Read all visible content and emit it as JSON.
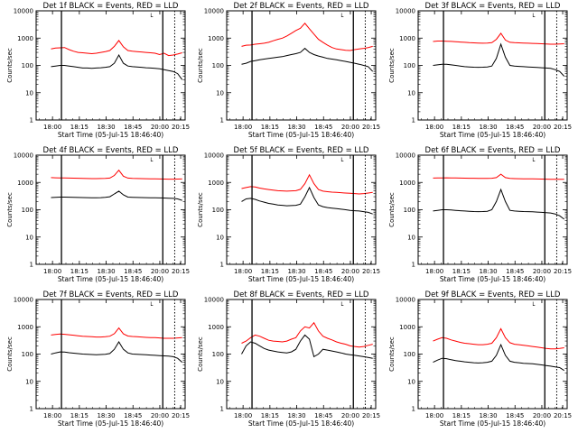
{
  "chart_data": [
    {
      "type": "line",
      "title": "Det 1f BLACK = Events, RED = LLD",
      "ylabel": "Counts/sec",
      "xlabel": "Start Time (05-Jul-15 18:46:40)",
      "yscale": "log",
      "ylim": [
        1,
        10000
      ],
      "yticks": [
        "1",
        "10",
        "100",
        "1000",
        "10000"
      ],
      "xticks": [
        "18:00",
        "18:15",
        "18:30",
        "18:45",
        "20:00",
        "20:15"
      ],
      "legend_mark": "└",
      "series": [
        {
          "name": "RED = LLD",
          "color": "#ff0000",
          "values": [
            400,
            430,
            440,
            450,
            380,
            330,
            300,
            290,
            280,
            270,
            280,
            300,
            320,
            350,
            500,
            820,
            480,
            350,
            330,
            320,
            310,
            300,
            290,
            280,
            250,
            280,
            230,
            240,
            260,
            290
          ]
        },
        {
          "name": "BLACK = Events",
          "color": "#000000",
          "values": [
            90,
            95,
            100,
            100,
            95,
            90,
            85,
            80,
            80,
            78,
            80,
            82,
            85,
            90,
            120,
            240,
            120,
            95,
            90,
            88,
            85,
            82,
            80,
            78,
            75,
            70,
            65,
            60,
            50,
            30
          ]
        }
      ]
    },
    {
      "type": "line",
      "title": "Det 2f BLACK = Events, RED = LLD",
      "ylabel": "Counts/sec",
      "xlabel": "Start Time (05-Jul-15 18:46:40)",
      "yscale": "log",
      "ylim": [
        1,
        10000
      ],
      "yticks": [
        "1",
        "10",
        "100",
        "1000",
        "10000"
      ],
      "xticks": [
        "18:00",
        "18:15",
        "18:30",
        "18:45",
        "20:00",
        "20:15"
      ],
      "legend_mark": "└",
      "series": [
        {
          "name": "RED = LLD",
          "color": "#ff0000",
          "values": [
            500,
            550,
            560,
            600,
            620,
            650,
            700,
            800,
            900,
            1000,
            1200,
            1500,
            1900,
            2300,
            3500,
            2200,
            1400,
            900,
            700,
            550,
            450,
            400,
            380,
            360,
            350,
            380,
            400,
            420,
            450,
            500
          ]
        },
        {
          "name": "BLACK = Events",
          "color": "#000000",
          "values": [
            110,
            120,
            140,
            150,
            160,
            170,
            180,
            190,
            200,
            210,
            230,
            250,
            270,
            300,
            420,
            300,
            250,
            220,
            200,
            180,
            170,
            160,
            150,
            140,
            130,
            120,
            110,
            100,
            90,
            60
          ]
        }
      ]
    },
    {
      "type": "line",
      "title": "Det 3f BLACK = Events, RED = LLD",
      "ylabel": "Counts/sec",
      "xlabel": "Start Time (05-Jul-15 18:46:40)",
      "yscale": "log",
      "ylim": [
        1,
        10000
      ],
      "yticks": [
        "1",
        "10",
        "100",
        "1000",
        "10000"
      ],
      "xticks": [
        "18:00",
        "18:15",
        "18:30",
        "18:45",
        "20:00",
        "20:15"
      ],
      "legend_mark": "└",
      "series": [
        {
          "name": "RED = LLD",
          "color": "#ff0000",
          "values": [
            750,
            780,
            780,
            770,
            760,
            740,
            720,
            700,
            680,
            670,
            660,
            650,
            660,
            680,
            900,
            1500,
            850,
            700,
            680,
            670,
            660,
            650,
            640,
            630,
            620,
            610,
            600,
            600,
            610,
            620
          ]
        },
        {
          "name": "BLACK = Events",
          "color": "#000000",
          "values": [
            100,
            105,
            110,
            110,
            105,
            100,
            95,
            90,
            88,
            86,
            85,
            86,
            88,
            95,
            180,
            600,
            200,
            100,
            95,
            92,
            90,
            88,
            86,
            84,
            82,
            80,
            78,
            70,
            60,
            40
          ]
        }
      ]
    },
    {
      "type": "line",
      "title": "Det 4f BLACK = Events, RED = LLD",
      "ylabel": "Counts/sec",
      "xlabel": "Start Time (05-Jul-15 18:46:40)",
      "yscale": "log",
      "ylim": [
        1,
        10000
      ],
      "yticks": [
        "1",
        "10",
        "100",
        "1000",
        "10000"
      ],
      "xticks": [
        "18:00",
        "18:15",
        "18:30",
        "18:45",
        "20:00",
        "20:15"
      ],
      "legend_mark": "└",
      "series": [
        {
          "name": "RED = LLD",
          "color": "#ff0000",
          "values": [
            1500,
            1480,
            1470,
            1460,
            1450,
            1440,
            1420,
            1400,
            1390,
            1380,
            1380,
            1390,
            1400,
            1450,
            1800,
            2800,
            1700,
            1450,
            1400,
            1390,
            1380,
            1370,
            1360,
            1350,
            1340,
            1330,
            1320,
            1320,
            1330,
            1340
          ]
        },
        {
          "name": "BLACK = Events",
          "color": "#000000",
          "values": [
            280,
            285,
            290,
            290,
            288,
            285,
            282,
            280,
            278,
            276,
            275,
            278,
            285,
            300,
            380,
            480,
            350,
            290,
            285,
            282,
            280,
            278,
            276,
            274,
            272,
            270,
            265,
            260,
            250,
            220
          ]
        }
      ]
    },
    {
      "type": "line",
      "title": "Det 5f BLACK = Events, RED = LLD",
      "ylabel": "Counts/sec",
      "xlabel": "Start Time (05-Jul-15 18:46:40)",
      "yscale": "log",
      "ylim": [
        1,
        10000
      ],
      "yticks": [
        "1",
        "10",
        "100",
        "1000",
        "10000"
      ],
      "xticks": [
        "18:00",
        "18:15",
        "18:30",
        "18:45",
        "20:00",
        "20:15"
      ],
      "legend_mark": "└",
      "series": [
        {
          "name": "RED = LLD",
          "color": "#ff0000",
          "values": [
            600,
            650,
            700,
            680,
            620,
            580,
            550,
            520,
            500,
            490,
            480,
            490,
            500,
            560,
            900,
            1900,
            900,
            550,
            480,
            460,
            440,
            430,
            420,
            410,
            400,
            390,
            380,
            390,
            410,
            430
          ]
        },
        {
          "name": "BLACK = Events",
          "color": "#000000",
          "values": [
            200,
            250,
            260,
            240,
            210,
            190,
            170,
            160,
            150,
            145,
            140,
            142,
            145,
            160,
            300,
            650,
            280,
            150,
            130,
            120,
            115,
            110,
            105,
            100,
            95,
            92,
            90,
            85,
            80,
            70
          ]
        }
      ]
    },
    {
      "type": "line",
      "title": "Det 6f BLACK = Events, RED = LLD",
      "ylabel": "Counts/sec",
      "xlabel": "Start Time (05-Jul-15 18:46:40)",
      "yscale": "log",
      "ylim": [
        1,
        10000
      ],
      "yticks": [
        "1",
        "10",
        "100",
        "1000",
        "10000"
      ],
      "xticks": [
        "18:00",
        "18:15",
        "18:30",
        "18:45",
        "20:00",
        "20:15"
      ],
      "legend_mark": "└",
      "series": [
        {
          "name": "RED = LLD",
          "color": "#ff0000",
          "values": [
            1450,
            1460,
            1470,
            1480,
            1470,
            1460,
            1450,
            1440,
            1430,
            1420,
            1410,
            1400,
            1400,
            1420,
            1500,
            2000,
            1500,
            1400,
            1380,
            1370,
            1360,
            1350,
            1350,
            1340,
            1330,
            1320,
            1310,
            1300,
            1300,
            1300
          ]
        },
        {
          "name": "BLACK = Events",
          "color": "#000000",
          "values": [
            90,
            95,
            100,
            100,
            98,
            95,
            92,
            90,
            88,
            86,
            85,
            86,
            88,
            100,
            200,
            550,
            200,
            95,
            90,
            88,
            86,
            85,
            84,
            82,
            80,
            78,
            76,
            70,
            60,
            45
          ]
        }
      ]
    },
    {
      "type": "line",
      "title": "Det 7f BLACK = Events, RED = LLD",
      "ylabel": "Counts/sec",
      "xlabel": "Start Time (05-Jul-15 18:46:40)",
      "yscale": "log",
      "ylim": [
        1,
        10000
      ],
      "yticks": [
        "1",
        "10",
        "100",
        "1000",
        "10000"
      ],
      "xticks": [
        "18:00",
        "18:15",
        "18:30",
        "18:45",
        "20:00",
        "20:15"
      ],
      "legend_mark": "└",
      "series": [
        {
          "name": "RED = LLD",
          "color": "#ff0000",
          "values": [
            500,
            520,
            540,
            530,
            510,
            490,
            470,
            450,
            440,
            430,
            420,
            420,
            430,
            450,
            560,
            900,
            550,
            460,
            440,
            430,
            420,
            410,
            400,
            400,
            390,
            380,
            380,
            380,
            390,
            400
          ]
        },
        {
          "name": "BLACK = Events",
          "color": "#000000",
          "values": [
            100,
            110,
            120,
            118,
            112,
            108,
            104,
            100,
            98,
            96,
            95,
            96,
            98,
            105,
            150,
            280,
            150,
            110,
            100,
            98,
            96,
            94,
            92,
            90,
            88,
            86,
            84,
            80,
            70,
            50
          ]
        }
      ]
    },
    {
      "type": "line",
      "title": "Det 8f BLACK = Events, RED = LLD",
      "ylabel": "Counts/sec",
      "xlabel": "Start Time (05-Jul-15 18:46:40)",
      "yscale": "log",
      "ylim": [
        1,
        10000
      ],
      "yticks": [
        "1",
        "10",
        "100",
        "1000",
        "10000"
      ],
      "xticks": [
        "18:00",
        "18:15",
        "18:30",
        "18:45",
        "20:00",
        "20:15"
      ],
      "legend_mark": "└",
      "series": [
        {
          "name": "RED = LLD",
          "color": "#ff0000",
          "values": [
            250,
            300,
            400,
            500,
            450,
            380,
            320,
            300,
            290,
            280,
            300,
            350,
            400,
            700,
            1000,
            900,
            1400,
            700,
            450,
            380,
            330,
            280,
            250,
            230,
            200,
            190,
            180,
            190,
            210,
            230
          ]
        },
        {
          "name": "BLACK = Events",
          "color": "#000000",
          "values": [
            100,
            200,
            280,
            250,
            200,
            160,
            140,
            130,
            120,
            115,
            110,
            120,
            150,
            300,
            500,
            350,
            80,
            100,
            150,
            140,
            130,
            120,
            110,
            100,
            95,
            90,
            85,
            80,
            75,
            70
          ]
        }
      ]
    },
    {
      "type": "line",
      "title": "Det 9f BLACK = Events, RED = LLD",
      "ylabel": "Counts/sec",
      "xlabel": "Start Time (05-Jul-15 18:46:40)",
      "yscale": "log",
      "ylim": [
        1,
        10000
      ],
      "yticks": [
        "1",
        "10",
        "100",
        "1000",
        "10000"
      ],
      "xticks": [
        "18:00",
        "18:15",
        "18:30",
        "18:45",
        "20:00",
        "20:15"
      ],
      "legend_mark": "└",
      "series": [
        {
          "name": "RED = LLD",
          "color": "#ff0000",
          "values": [
            300,
            350,
            400,
            380,
            330,
            300,
            270,
            250,
            240,
            230,
            220,
            220,
            230,
            250,
            400,
            850,
            400,
            260,
            230,
            220,
            210,
            200,
            190,
            180,
            170,
            160,
            155,
            155,
            160,
            170
          ]
        },
        {
          "name": "BLACK = Events",
          "color": "#000000",
          "values": [
            50,
            60,
            70,
            68,
            62,
            58,
            55,
            52,
            50,
            48,
            47,
            48,
            50,
            55,
            90,
            220,
            90,
            55,
            50,
            48,
            46,
            45,
            44,
            42,
            40,
            38,
            36,
            34,
            32,
            25
          ]
        }
      ]
    }
  ]
}
